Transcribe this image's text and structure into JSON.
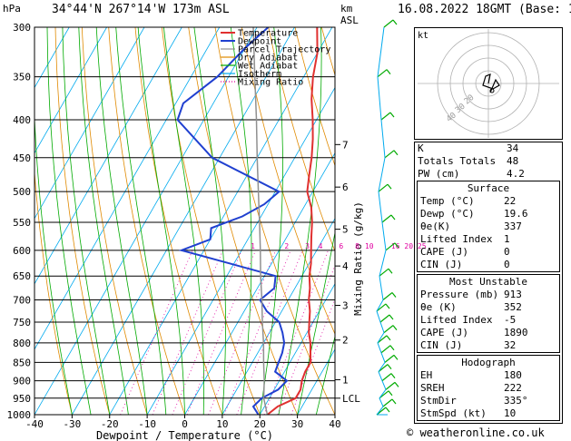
{
  "header": {
    "hpa_unit": "hPa",
    "location": "34°44'N  267°14'W  173m  ASL",
    "km_unit": "km",
    "asl_unit": "ASL",
    "datetime": "16.08.2022  18GMT  (Base: 12)"
  },
  "hodograph": {
    "label": "kt",
    "ring_labels": [
      "20",
      "30",
      "40"
    ]
  },
  "indices": [
    {
      "label": "K",
      "value": "34"
    },
    {
      "label": "Totals Totals",
      "value": "48"
    },
    {
      "label": "PW (cm)",
      "value": "4.2"
    }
  ],
  "surface": {
    "title": "Surface",
    "rows": [
      {
        "label": "Temp (°C)",
        "value": "22"
      },
      {
        "label": "Dewp (°C)",
        "value": "19.6"
      },
      {
        "label": "θe(K)",
        "value": "337"
      },
      {
        "label": "Lifted Index",
        "value": "1"
      },
      {
        "label": "CAPE (J)",
        "value": "0"
      },
      {
        "label": "CIN (J)",
        "value": "0"
      }
    ]
  },
  "most_unstable": {
    "title": "Most Unstable",
    "rows": [
      {
        "label": "Pressure (mb)",
        "value": "913"
      },
      {
        "label": "θe (K)",
        "value": "352"
      },
      {
        "label": "Lifted Index",
        "value": "-5"
      },
      {
        "label": "CAPE (J)",
        "value": "1890"
      },
      {
        "label": "CIN (J)",
        "value": "32"
      }
    ]
  },
  "hodograph_table": {
    "title": "Hodograph",
    "rows": [
      {
        "label": "EH",
        "value": "180"
      },
      {
        "label": "SREH",
        "value": "222"
      },
      {
        "label": "StmDir",
        "value": "335°"
      },
      {
        "label": "StmSpd (kt)",
        "value": "10"
      }
    ]
  },
  "footer": "© weatheronline.co.uk",
  "colors": {
    "temperature": "#e03030",
    "dewpoint": "#2040d0",
    "parcel": "#909090",
    "dry_adiabat": "#e08a00",
    "wet_adiabat": "#00aa00",
    "isotherm": "#00aaee",
    "mixing_ratio": "#e000a0",
    "wind": "#00aa00"
  },
  "chart_data": {
    "type": "line",
    "title": "",
    "xlabel": "Dewpoint / Temperature (°C)",
    "ylabel": "hPa",
    "xlim": [
      -40,
      40
    ],
    "ylim": [
      1000,
      300
    ],
    "y_scale": "log",
    "x_ticks": [
      "-40",
      "-30",
      "-20",
      "-10",
      "0",
      "10",
      "20",
      "30",
      "40"
    ],
    "pressure_levels": [
      300,
      350,
      400,
      450,
      500,
      550,
      600,
      650,
      700,
      750,
      800,
      850,
      900,
      950,
      1000
    ],
    "right_axis_label": "Mixing Ratio (g/kg)",
    "km_ticks": [
      {
        "label": "7",
        "p": 432
      },
      {
        "label": "6",
        "p": 493
      },
      {
        "label": "5",
        "p": 562
      },
      {
        "label": "4",
        "p": 630
      },
      {
        "label": "3",
        "p": 712
      },
      {
        "label": "2",
        "p": 793
      },
      {
        "label": "1",
        "p": 897
      },
      {
        "label": "LCL",
        "p": 950
      }
    ],
    "mixing_ratio_labels": [
      {
        "label": "1",
        "t": -7
      },
      {
        "label": "2",
        "t": 2
      },
      {
        "label": "3",
        "t": 7.5
      },
      {
        "label": "4",
        "t": 11
      },
      {
        "label": "6",
        "t": 16.5
      },
      {
        "label": "8",
        "t": 20.8
      },
      {
        "label": "10",
        "t": 24
      },
      {
        "label": "16",
        "t": 31
      },
      {
        "label": "20",
        "t": 34.5
      },
      {
        "label": "25",
        "t": 38
      }
    ],
    "legend": [
      "Temperature",
      "Dewpoint",
      "Parcel Trajectory",
      "Dry Adiabat",
      "Wet Adiabat",
      "Isotherm",
      "Mixing Ratio"
    ],
    "legend_position": "top-left",
    "series": [
      {
        "name": "Temperature",
        "points": [
          [
            1000,
            22
          ],
          [
            975,
            23.5
          ],
          [
            950,
            27
          ],
          [
            925,
            27
          ],
          [
            900,
            26
          ],
          [
            875,
            25.5
          ],
          [
            850,
            25.5
          ],
          [
            825,
            24
          ],
          [
            800,
            22.5
          ],
          [
            775,
            20.5
          ],
          [
            750,
            19
          ],
          [
            725,
            17.5
          ],
          [
            700,
            15.5
          ],
          [
            675,
            14
          ],
          [
            650,
            12
          ],
          [
            625,
            10.5
          ],
          [
            600,
            8.5
          ],
          [
            575,
            6.5
          ],
          [
            550,
            4.5
          ],
          [
            525,
            2
          ],
          [
            500,
            -1.5
          ],
          [
            475,
            -3.5
          ],
          [
            450,
            -5.5
          ],
          [
            425,
            -8
          ],
          [
            400,
            -11
          ],
          [
            375,
            -14.5
          ],
          [
            350,
            -17.5
          ],
          [
            325,
            -20
          ],
          [
            300,
            -24
          ]
        ]
      },
      {
        "name": "Dewpoint",
        "points": [
          [
            1000,
            19.6
          ],
          [
            975,
            17
          ],
          [
            950,
            18
          ],
          [
            925,
            21
          ],
          [
            900,
            22
          ],
          [
            875,
            17.5
          ],
          [
            850,
            17
          ],
          [
            825,
            16.5
          ],
          [
            800,
            15.5
          ],
          [
            775,
            13.5
          ],
          [
            750,
            11
          ],
          [
            725,
            6
          ],
          [
            700,
            2.5
          ],
          [
            675,
            4.5
          ],
          [
            650,
            3
          ],
          [
            600,
            -26
          ],
          [
            580,
            -20
          ],
          [
            560,
            -21.5
          ],
          [
            540,
            -15
          ],
          [
            520,
            -11
          ],
          [
            500,
            -9
          ],
          [
            450,
            -32
          ],
          [
            400,
            -47
          ],
          [
            380,
            -48
          ],
          [
            350,
            -43
          ],
          [
            320,
            -40
          ],
          [
            300,
            -37
          ]
        ]
      },
      {
        "name": "Parcel Trajectory",
        "points": [
          [
            1000,
            22
          ],
          [
            950,
            18.5
          ],
          [
            900,
            16
          ],
          [
            850,
            13
          ],
          [
            800,
            10
          ],
          [
            750,
            6.5
          ],
          [
            700,
            3
          ],
          [
            650,
            -1
          ],
          [
            600,
            -5
          ],
          [
            550,
            -9.5
          ],
          [
            500,
            -14.5
          ],
          [
            450,
            -20
          ],
          [
            400,
            -26
          ],
          [
            350,
            -33
          ],
          [
            300,
            -41
          ]
        ]
      }
    ],
    "wind_levels": [
      1000,
      975,
      950,
      925,
      900,
      875,
      850,
      825,
      800,
      775,
      750,
      725,
      700,
      650,
      600,
      550,
      500,
      450,
      400,
      350,
      300
    ]
  }
}
